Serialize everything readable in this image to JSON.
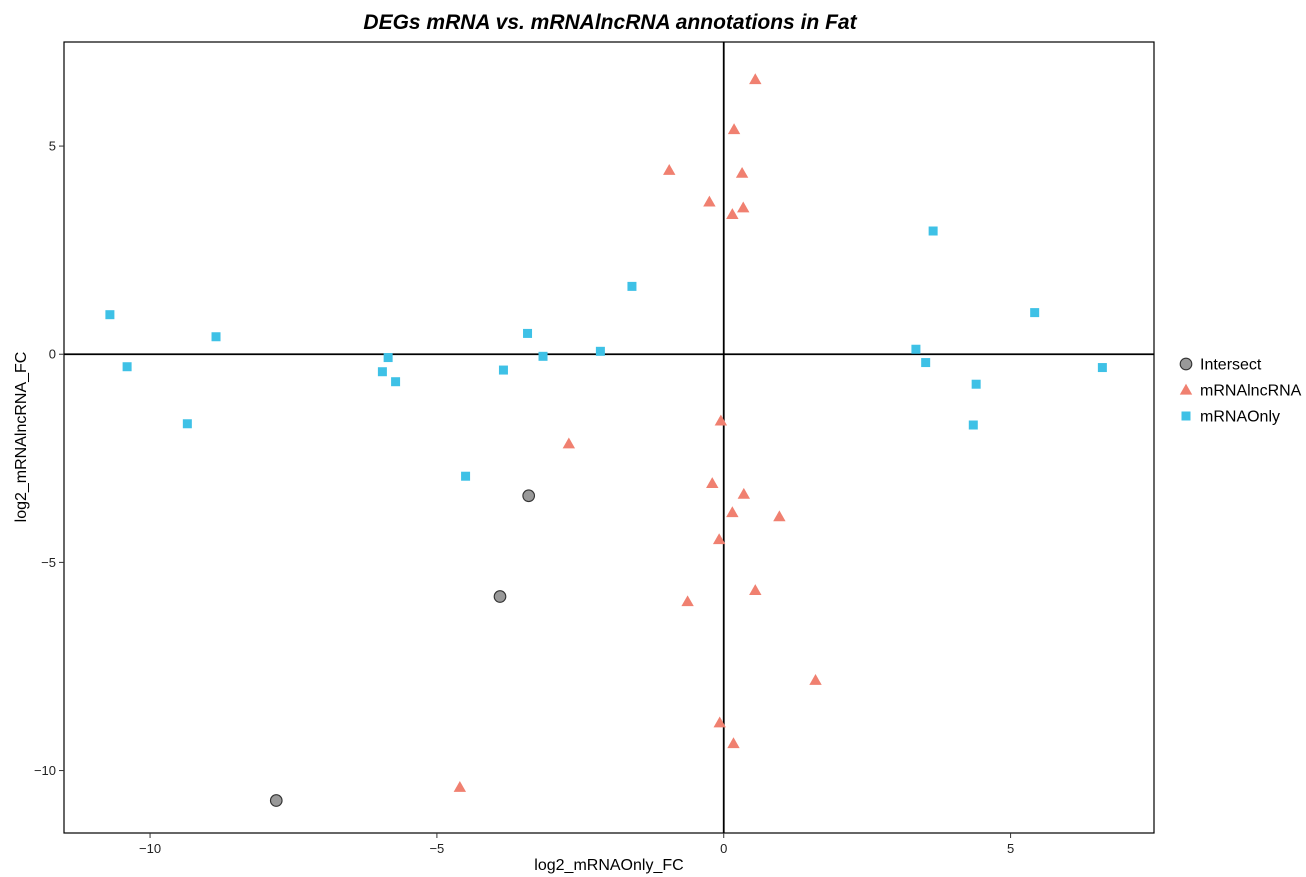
{
  "chart_data": {
    "type": "scatter",
    "title": "DEGs mRNA vs. mRNAlncRNA annotations in Fat",
    "xlabel": "log2_mRNAOnly_FC",
    "ylabel": "log2_mRNAlncRNA_FC",
    "xlim": [
      -11.5,
      7.5
    ],
    "ylim": [
      -11.5,
      7.5
    ],
    "xticks": [
      -10,
      -5,
      0,
      5
    ],
    "yticks": [
      -10,
      -5,
      0,
      5
    ],
    "x_tick_labels": [
      "−10",
      "−5",
      "0",
      "5"
    ],
    "y_tick_labels": [
      "−10",
      "−5",
      "0",
      "5"
    ],
    "grid": false,
    "legend_position": "right",
    "series": [
      {
        "name": "Intersect",
        "marker": "circle",
        "color": "#999999",
        "points": [
          {
            "x": -3.4,
            "y": -3.4
          },
          {
            "x": -3.9,
            "y": -5.82
          },
          {
            "x": -7.8,
            "y": -10.72
          }
        ]
      },
      {
        "name": "mRNAlncRNA",
        "marker": "triangle",
        "color": "#F08070",
        "points": [
          {
            "x": 0.55,
            "y": 6.6
          },
          {
            "x": 0.18,
            "y": 5.4
          },
          {
            "x": -0.95,
            "y": 4.42
          },
          {
            "x": 0.32,
            "y": 4.35
          },
          {
            "x": -0.25,
            "y": 3.66
          },
          {
            "x": 0.34,
            "y": 3.52
          },
          {
            "x": 0.15,
            "y": 3.36
          },
          {
            "x": -0.05,
            "y": -1.6
          },
          {
            "x": -2.7,
            "y": -2.15
          },
          {
            "x": -0.2,
            "y": -3.1
          },
          {
            "x": 0.35,
            "y": -3.36
          },
          {
            "x": 0.15,
            "y": -3.8
          },
          {
            "x": 0.97,
            "y": -3.9
          },
          {
            "x": -0.08,
            "y": -4.45
          },
          {
            "x": 0.55,
            "y": -5.67
          },
          {
            "x": -0.63,
            "y": -5.94
          },
          {
            "x": 1.6,
            "y": -7.83
          },
          {
            "x": -0.07,
            "y": -8.85
          },
          {
            "x": 0.17,
            "y": -9.35
          },
          {
            "x": -4.6,
            "y": -10.4
          }
        ]
      },
      {
        "name": "mRNAOnly",
        "marker": "square",
        "color": "#3EC1E6",
        "points": [
          {
            "x": -10.7,
            "y": 0.95
          },
          {
            "x": -10.4,
            "y": -0.3
          },
          {
            "x": -9.35,
            "y": -1.67
          },
          {
            "x": -8.85,
            "y": 0.42
          },
          {
            "x": -5.85,
            "y": -0.08
          },
          {
            "x": -5.95,
            "y": -0.42
          },
          {
            "x": -5.72,
            "y": -0.66
          },
          {
            "x": -4.5,
            "y": -2.93
          },
          {
            "x": -3.84,
            "y": -0.38
          },
          {
            "x": -3.42,
            "y": 0.5
          },
          {
            "x": -3.15,
            "y": -0.05
          },
          {
            "x": -2.15,
            "y": 0.07
          },
          {
            "x": -1.6,
            "y": 1.63
          },
          {
            "x": 3.65,
            "y": 2.96
          },
          {
            "x": 3.35,
            "y": 0.12
          },
          {
            "x": 3.52,
            "y": -0.2
          },
          {
            "x": 4.4,
            "y": -0.72
          },
          {
            "x": 4.35,
            "y": -1.7
          },
          {
            "x": 5.42,
            "y": 1.0
          },
          {
            "x": 6.6,
            "y": -0.32
          }
        ]
      }
    ]
  }
}
